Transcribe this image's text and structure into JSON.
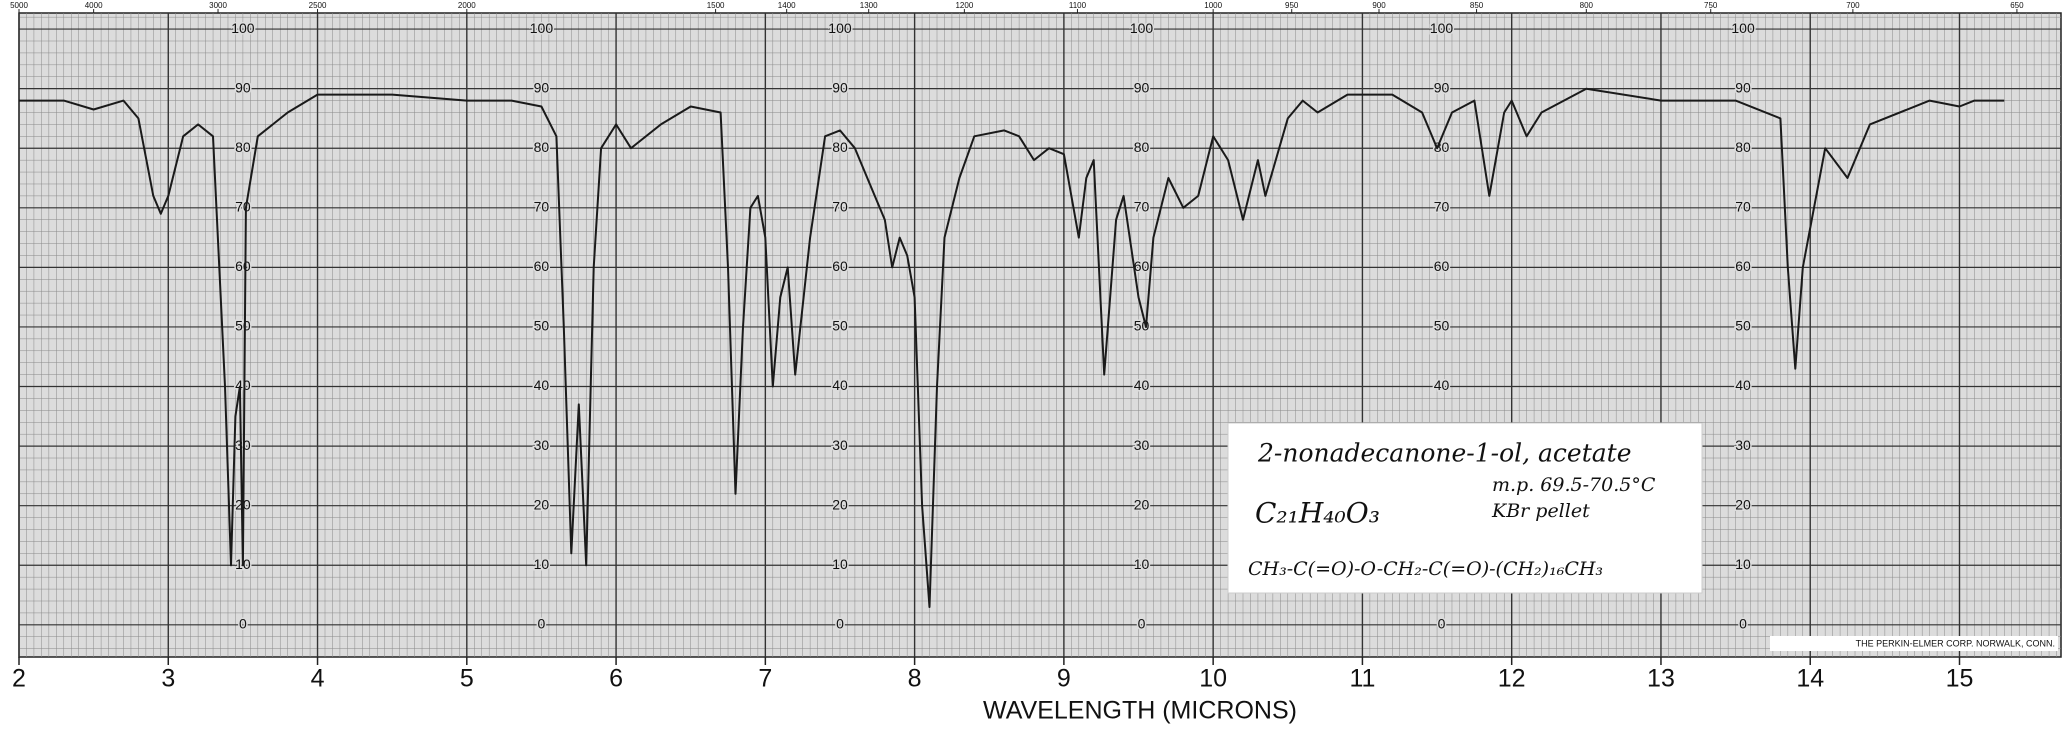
{
  "chart_data": {
    "type": "line",
    "xlabel": "WAVELENGTH (MICRONS)",
    "xlim": [
      2,
      15.68
    ],
    "xticks": [
      2,
      3,
      4,
      5,
      6,
      7,
      8,
      9,
      10,
      11,
      12,
      13,
      14,
      15
    ],
    "ylim": [
      -5.4,
      102.7
    ],
    "yticks": [
      0,
      10,
      20,
      30,
      40,
      50,
      60,
      70,
      80,
      90,
      100
    ],
    "top_ticks": [
      5000,
      4000,
      3000,
      2500,
      2000,
      1500,
      1400,
      1300,
      1200,
      1100,
      1000,
      950,
      900,
      850,
      800,
      750,
      700,
      650
    ],
    "grid": true,
    "color": "#1a1a1a",
    "x": [
      2.0,
      2.3,
      2.5,
      2.7,
      2.8,
      2.9,
      2.95,
      3.0,
      3.1,
      3.2,
      3.3,
      3.38,
      3.42,
      3.45,
      3.48,
      3.5,
      3.52,
      3.6,
      3.7,
      3.8,
      4.0,
      4.5,
      5.0,
      5.3,
      5.5,
      5.6,
      5.65,
      5.7,
      5.75,
      5.8,
      5.85,
      5.9,
      6.0,
      6.1,
      6.3,
      6.5,
      6.7,
      6.75,
      6.8,
      6.85,
      6.9,
      6.95,
      7.0,
      7.05,
      7.1,
      7.15,
      7.2,
      7.3,
      7.4,
      7.5,
      7.6,
      7.7,
      7.8,
      7.85,
      7.9,
      7.95,
      8.0,
      8.05,
      8.1,
      8.15,
      8.2,
      8.3,
      8.4,
      8.6,
      8.7,
      8.8,
      8.9,
      9.0,
      9.1,
      9.15,
      9.2,
      9.27,
      9.35,
      9.4,
      9.5,
      9.55,
      9.6,
      9.7,
      9.8,
      9.9,
      10.0,
      10.1,
      10.2,
      10.3,
      10.35,
      10.5,
      10.6,
      10.7,
      10.9,
      11.2,
      11.4,
      11.5,
      11.6,
      11.75,
      11.85,
      11.95,
      12.0,
      12.1,
      12.2,
      12.5,
      13.0,
      13.5,
      13.8,
      13.85,
      13.9,
      13.95,
      14.1,
      14.25,
      14.4,
      14.8,
      15.0,
      15.1,
      15.3
    ],
    "values": [
      88,
      88,
      86.5,
      88,
      85,
      72,
      69,
      72,
      82,
      84,
      82,
      40,
      10,
      35,
      40,
      10,
      70,
      82,
      84,
      86,
      89,
      89,
      88,
      88,
      87,
      82,
      50,
      12,
      37,
      10,
      60,
      80,
      84,
      80,
      84,
      87,
      86,
      60,
      22,
      50,
      70,
      72,
      65,
      40,
      55,
      60,
      42,
      65,
      82,
      83,
      80,
      74,
      68,
      60,
      65,
      62,
      55,
      20,
      3,
      40,
      65,
      75,
      82,
      83,
      82,
      78,
      80,
      79,
      65,
      75,
      78,
      42,
      68,
      72,
      55,
      50,
      65,
      75,
      70,
      72,
      82,
      78,
      68,
      78,
      72,
      85,
      88,
      86,
      89,
      89,
      86,
      80,
      86,
      88,
      72,
      86,
      88,
      82,
      86,
      90,
      88,
      88,
      85,
      60,
      43,
      60,
      80,
      75,
      84,
      88,
      87,
      88,
      88
    ],
    "annotations": [
      "2-nonadecanone-1-ol, acetate",
      "m.p. 69.5-70.5°C",
      "KBr pellet",
      "C₂₁H₄₀O₃",
      "CH₃-C(=O)-O-CH₂-C(=O)-(CH₂)₁₆CH₃"
    ],
    "footer": "THE PERKIN-ELMER CORP. NORWALK, CONN."
  }
}
